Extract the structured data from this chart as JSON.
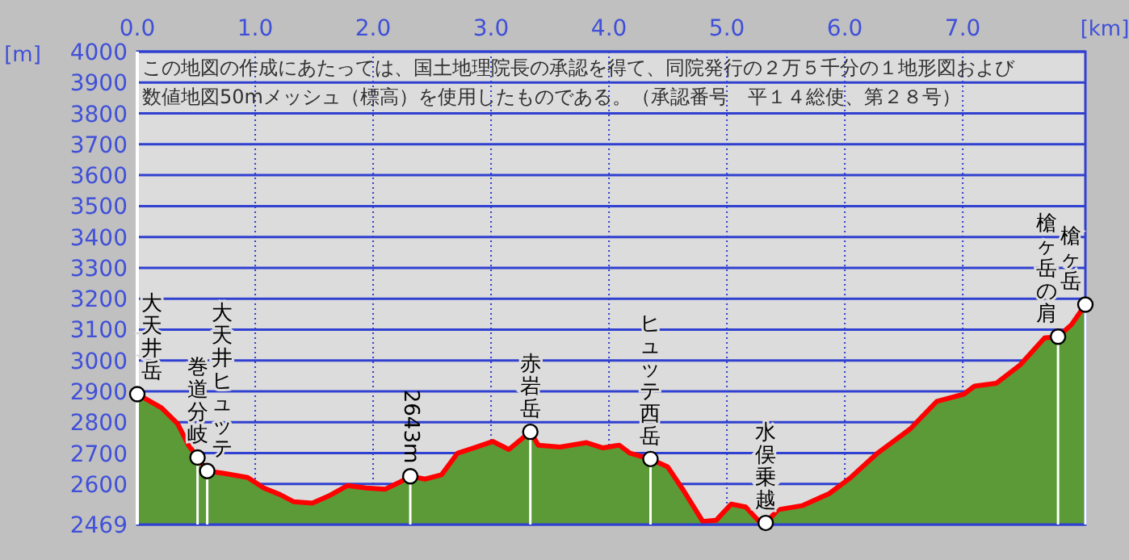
{
  "chart_data": {
    "type": "area",
    "xlabel": "[km]",
    "ylabel": "[m]",
    "x": [
      0,
      0.205,
      0.342,
      0.434,
      0.511,
      0.593,
      0.73,
      0.936,
      1.073,
      1.21,
      1.324,
      1.484,
      1.621,
      1.781,
      1.941,
      2.1,
      2.215,
      2.315,
      2.44,
      2.58,
      2.716,
      2.853,
      3.014,
      3.151,
      3.333,
      3.4,
      3.585,
      3.81,
      3.95,
      4.086,
      4.178,
      4.352,
      4.497,
      4.634,
      4.795,
      4.91,
      5.036,
      5.159,
      5.274,
      5.329,
      5.434,
      5.638,
      5.867,
      6.05,
      6.277,
      6.553,
      6.781,
      7.009,
      7.1,
      7.283,
      7.488,
      7.694,
      7.808,
      7.922,
      8.04
    ],
    "series": [
      {
        "color": "#5b9a37",
        "values": [
          2891,
          2847,
          2795,
          2726,
          2686,
          2642,
          2635,
          2621,
          2587,
          2566,
          2543,
          2538,
          2561,
          2595,
          2587,
          2583,
          2604,
          2625,
          2616,
          2630,
          2700,
          2717,
          2738,
          2712,
          2769,
          2726,
          2720,
          2734,
          2717,
          2726,
          2700,
          2681,
          2656,
          2578,
          2479,
          2483,
          2535,
          2526,
          2479,
          2474,
          2517,
          2530,
          2569,
          2621,
          2700,
          2778,
          2868,
          2891,
          2917,
          2926,
          2986,
          3073,
          3077,
          3116,
          3181
        ]
      }
    ],
    "xlim": [
      0,
      8.04
    ],
    "ylim": [
      2469,
      4000
    ],
    "xticks": [
      {
        "value": 0,
        "label": "0.0"
      },
      {
        "value": 1,
        "label": "1.0"
      },
      {
        "value": 2,
        "label": "2.0"
      },
      {
        "value": 3,
        "label": "3.0"
      },
      {
        "value": 4,
        "label": "4.0"
      },
      {
        "value": 5,
        "label": "5.0"
      },
      {
        "value": 6,
        "label": "6.0"
      },
      {
        "value": 7,
        "label": "7.0"
      }
    ],
    "yticks": [
      2469,
      2600,
      2700,
      2800,
      2900,
      3000,
      3100,
      3200,
      3300,
      3400,
      3500,
      3600,
      3700,
      3800,
      3900,
      4000
    ],
    "grid": true,
    "annotations": [
      "この地図の作成にあたっては、国土地理院長の承認を得て、同院発行の２万５千分の１地形図および",
      "数値地図50mメッシュ（標高）を使用したものである。（承認番号　平１４総使、第２８号）",
      {
        "text": "大天井岳",
        "x": 0,
        "y": 2891
      },
      {
        "text": "巻道分岐",
        "x": 0.511,
        "y": 2686
      },
      {
        "text": "大天井ヒュッテ",
        "x": 0.593,
        "y": 2642
      },
      {
        "text": "2643m",
        "x": 2.315,
        "y": 2625
      },
      {
        "text": "赤岩岳",
        "x": 3.333,
        "y": 2769
      },
      {
        "text": "ヒュッテ西岳",
        "x": 4.352,
        "y": 2681
      },
      {
        "text": "水俣乗越",
        "x": 5.329,
        "y": 2474
      },
      {
        "text": "槍ヶ岳の肩",
        "x": 7.808,
        "y": 3077
      },
      {
        "text": "槍ヶ岳",
        "x": 8.04,
        "y": 3181
      }
    ]
  }
}
